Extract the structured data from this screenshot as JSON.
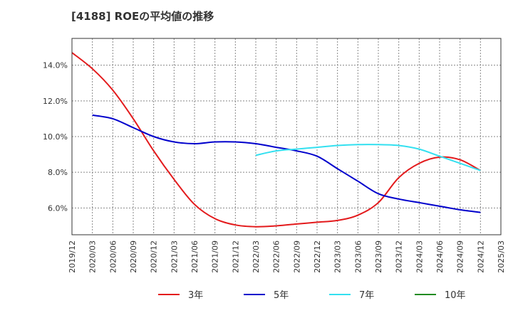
{
  "chart_data": {
    "type": "line",
    "title": "[4188]  ROEの平均値の推移",
    "xlabel": "",
    "ylabel": "",
    "ylim": [
      4.5,
      15.5
    ],
    "yticks": [
      "6.0%",
      "8.0%",
      "10.0%",
      "12.0%",
      "14.0%"
    ],
    "ytick_values": [
      6,
      8,
      10,
      12,
      14
    ],
    "categories": [
      "2019/12",
      "2020/03",
      "2020/06",
      "2020/09",
      "2020/12",
      "2021/03",
      "2021/06",
      "2021/09",
      "2021/12",
      "2022/03",
      "2022/06",
      "2022/09",
      "2022/12",
      "2023/03",
      "2023/06",
      "2023/09",
      "2023/12",
      "2024/03",
      "2024/06",
      "2024/09",
      "2024/12",
      "2025/03"
    ],
    "grid": true,
    "legend_position": "bottom",
    "series": [
      {
        "name": "3年",
        "color": "#e31a1c",
        "values": [
          14.7,
          13.8,
          12.6,
          11.0,
          9.2,
          7.6,
          6.2,
          5.4,
          5.05,
          4.95,
          5.0,
          5.1,
          5.2,
          5.3,
          5.6,
          6.3,
          7.7,
          8.5,
          8.85,
          8.7,
          8.1,
          null
        ]
      },
      {
        "name": "5年",
        "color": "#0000cc",
        "values": [
          null,
          11.2,
          11.0,
          10.5,
          10.0,
          9.7,
          9.6,
          9.7,
          9.7,
          9.6,
          9.4,
          9.2,
          8.9,
          8.2,
          7.5,
          6.8,
          6.5,
          6.3,
          6.1,
          5.9,
          5.75,
          null
        ]
      },
      {
        "name": "7年",
        "color": "#33e0f0",
        "values": [
          null,
          null,
          null,
          null,
          null,
          null,
          null,
          null,
          null,
          8.95,
          9.2,
          9.3,
          9.4,
          9.5,
          9.55,
          9.55,
          9.5,
          9.3,
          8.9,
          8.5,
          8.1,
          null
        ]
      },
      {
        "name": "10年",
        "color": "#228b22",
        "values": [
          null,
          null,
          null,
          null,
          null,
          null,
          null,
          null,
          null,
          null,
          null,
          null,
          null,
          null,
          null,
          null,
          null,
          null,
          null,
          null,
          null,
          null
        ]
      }
    ]
  }
}
